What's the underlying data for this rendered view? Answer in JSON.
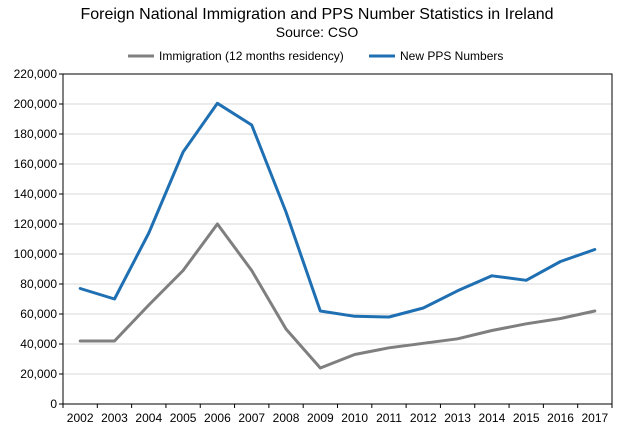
{
  "chart_data": {
    "type": "line",
    "title": "Foreign National Immigration and PPS Number Statistics in Ireland",
    "subtitle": "Source: CSO",
    "xlabel": "",
    "ylabel": "",
    "categories": [
      "2002",
      "2003",
      "2004",
      "2005",
      "2006",
      "2007",
      "2008",
      "2009",
      "2010",
      "2011",
      "2012",
      "2013",
      "2014",
      "2015",
      "2016",
      "2017"
    ],
    "ylim": [
      0,
      220000
    ],
    "yticks": [
      0,
      20000,
      40000,
      60000,
      80000,
      100000,
      120000,
      140000,
      160000,
      180000,
      200000,
      220000
    ],
    "ytick_labels": [
      "0",
      "20,000",
      "40,000",
      "60,000",
      "80,000",
      "100,000",
      "120,000",
      "140,000",
      "160,000",
      "180,000",
      "200,000",
      "220,000"
    ],
    "grid": true,
    "legend_position": "top",
    "series": [
      {
        "name": "Immigration (12 months residency)",
        "color": "#7f7f7f",
        "values": [
          42000,
          42000,
          66000,
          89000,
          120000,
          89000,
          50000,
          24000,
          33000,
          37500,
          40500,
          43500,
          49000,
          53500,
          57000,
          62000
        ]
      },
      {
        "name": "New PPS Numbers",
        "color": "#1f6fb3",
        "values": [
          77000,
          70000,
          114000,
          168000,
          200500,
          186000,
          128000,
          62000,
          58500,
          58000,
          64000,
          75500,
          85500,
          82500,
          95000,
          103000
        ]
      }
    ]
  }
}
